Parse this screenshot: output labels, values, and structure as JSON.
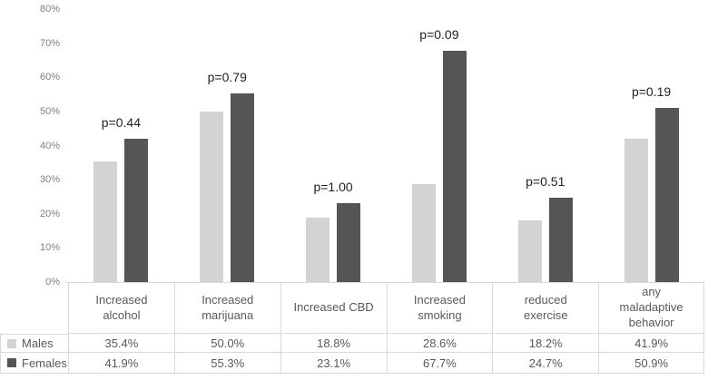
{
  "chart_data": {
    "type": "bar",
    "title": "",
    "categories": [
      "Increased alcohol",
      "Increased marijuana",
      "Increased CBD",
      "Increased smoking",
      "reduced exercise",
      "any maladaptive behavior"
    ],
    "series": [
      {
        "name": "Males",
        "color": "#d3d3d3",
        "values": [
          35.4,
          50.0,
          18.8,
          28.6,
          18.2,
          41.9
        ]
      },
      {
        "name": "Females",
        "color": "#555555",
        "values": [
          41.9,
          55.3,
          23.1,
          67.7,
          24.7,
          50.9
        ]
      }
    ],
    "annotations": {
      "p_values": [
        "p=0.44",
        "p=0.79",
        "p=1.00",
        "p=0.09",
        "p=0.51",
        "p=0.19"
      ]
    },
    "y_axis": {
      "min": 0,
      "max": 80,
      "ticks": [
        "0%",
        "10%",
        "20%",
        "30%",
        "40%",
        "50%",
        "60%",
        "70%",
        "80%"
      ]
    },
    "grid": false,
    "legend": {
      "position": "bottom-table-left",
      "entries": [
        "Males",
        "Females"
      ]
    },
    "data_table": {
      "rows": [
        {
          "label": "Males",
          "cells": [
            "35.4%",
            "50.0%",
            "18.8%",
            "28.6%",
            "18.2%",
            "41.9%"
          ]
        },
        {
          "label": "Females",
          "cells": [
            "41.9%",
            "55.3%",
            "23.1%",
            "67.7%",
            "24.7%",
            "50.9%"
          ]
        }
      ]
    }
  },
  "colors": {
    "male_bar": "#d3d3d3",
    "female_bar": "#555555",
    "table_border": "#d9d9d9",
    "axis_text": "#808080",
    "table_text": "#595959",
    "p_label_text": "#1f1f1f",
    "background": "#ffffff"
  }
}
